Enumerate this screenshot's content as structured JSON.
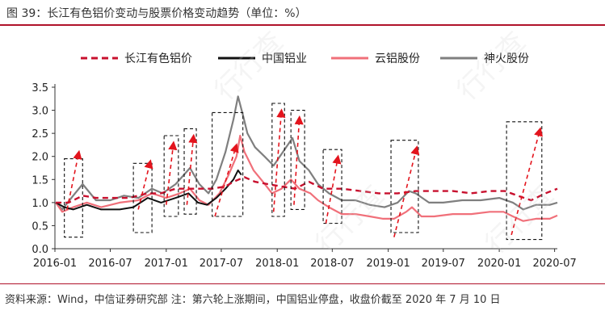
{
  "title": "图 39：长江有色铝价变动与股票价格变动趋势（单位：%）",
  "source": "资料来源：Wind，中信证券研究部  注：第六轮上涨期间，中国铝业停盘，收盘价截至 2020 年 7 月 10 日",
  "watermark": "行行查",
  "colors": {
    "accent": "#b0122a",
    "series": [
      "#c8102e",
      "#111111",
      "#f0707a",
      "#7f7f7f"
    ]
  },
  "chart_data": {
    "type": "line",
    "title": "",
    "xlabel": "",
    "ylabel": "",
    "ylim": [
      0.0,
      3.5
    ],
    "yticks": [
      "0.0",
      "0.5",
      "1.0",
      "1.5",
      "2.0",
      "2.5",
      "3.0",
      "3.5"
    ],
    "xlim": [
      "2016-01-01",
      "2020-07-10"
    ],
    "xticks": [
      "2016-01",
      "2016-07",
      "2017-01",
      "2017-07",
      "2018-01",
      "2018-07",
      "2019-01",
      "2019-07",
      "2020-01",
      "2020-07"
    ],
    "legend": "top",
    "grid": false,
    "series": [
      {
        "name": "长江有色铝价",
        "style": "dashed",
        "points": [
          [
            "2016-01-04",
            1.0
          ],
          [
            "2016-02-15",
            1.0
          ],
          [
            "2016-04-01",
            1.15
          ],
          [
            "2016-05-15",
            1.1
          ],
          [
            "2016-07-01",
            1.1
          ],
          [
            "2016-09-01",
            1.1
          ],
          [
            "2016-11-01",
            1.2
          ],
          [
            "2016-12-15",
            1.2
          ],
          [
            "2017-02-01",
            1.3
          ],
          [
            "2017-04-01",
            1.3
          ],
          [
            "2017-06-01",
            1.3
          ],
          [
            "2017-07-15",
            1.35
          ],
          [
            "2017-08-10",
            1.45
          ],
          [
            "2017-09-15",
            1.55
          ],
          [
            "2017-10-20",
            1.45
          ],
          [
            "2017-12-01",
            1.4
          ],
          [
            "2018-01-15",
            1.35
          ],
          [
            "2018-03-01",
            1.3
          ],
          [
            "2018-04-15",
            1.45
          ],
          [
            "2018-06-01",
            1.3
          ],
          [
            "2018-08-01",
            1.3
          ],
          [
            "2018-10-01",
            1.25
          ],
          [
            "2018-12-01",
            1.2
          ],
          [
            "2019-02-01",
            1.2
          ],
          [
            "2019-04-01",
            1.25
          ],
          [
            "2019-06-01",
            1.25
          ],
          [
            "2019-08-01",
            1.25
          ],
          [
            "2019-10-01",
            1.2
          ],
          [
            "2019-12-01",
            1.25
          ],
          [
            "2020-01-20",
            1.25
          ],
          [
            "2020-03-01",
            1.15
          ],
          [
            "2020-04-15",
            1.05
          ],
          [
            "2020-06-01",
            1.2
          ],
          [
            "2020-07-10",
            1.3
          ]
        ]
      },
      {
        "name": "中国铝业",
        "style": "solid",
        "points": [
          [
            "2016-01-04",
            1.0
          ],
          [
            "2016-02-01",
            0.9
          ],
          [
            "2016-03-01",
            0.85
          ],
          [
            "2016-04-15",
            0.95
          ],
          [
            "2016-06-01",
            0.85
          ],
          [
            "2016-08-01",
            0.85
          ],
          [
            "2016-09-15",
            0.9
          ],
          [
            "2016-11-01",
            1.1
          ],
          [
            "2016-12-15",
            1.0
          ],
          [
            "2017-02-01",
            1.1
          ],
          [
            "2017-03-15",
            1.2
          ],
          [
            "2017-04-15",
            1.0
          ],
          [
            "2017-05-15",
            0.95
          ],
          [
            "2017-06-15",
            1.1
          ],
          [
            "2017-07-15",
            1.3
          ],
          [
            "2017-08-10",
            1.5
          ],
          [
            "2017-08-25",
            1.7
          ],
          [
            "2017-09-05",
            1.6
          ]
        ]
      },
      {
        "name": "云铝股份",
        "style": "solid",
        "points": [
          [
            "2016-01-04",
            1.0
          ],
          [
            "2016-01-25",
            0.8
          ],
          [
            "2016-03-01",
            0.9
          ],
          [
            "2016-04-15",
            1.0
          ],
          [
            "2016-06-01",
            0.9
          ],
          [
            "2016-08-01",
            1.0
          ],
          [
            "2016-10-01",
            1.05
          ],
          [
            "2016-11-15",
            1.2
          ],
          [
            "2017-01-01",
            1.1
          ],
          [
            "2017-02-15",
            1.2
          ],
          [
            "2017-03-20",
            1.3
          ],
          [
            "2017-04-20",
            1.05
          ],
          [
            "2017-05-20",
            0.95
          ],
          [
            "2017-06-25",
            1.2
          ],
          [
            "2017-07-25",
            1.6
          ],
          [
            "2017-08-20",
            2.0
          ],
          [
            "2017-09-01",
            2.45
          ],
          [
            "2017-09-15",
            2.1
          ],
          [
            "2017-10-15",
            1.7
          ],
          [
            "2017-11-15",
            1.45
          ],
          [
            "2017-12-15",
            1.2
          ],
          [
            "2018-01-15",
            1.3
          ],
          [
            "2018-02-15",
            1.5
          ],
          [
            "2018-03-15",
            1.3
          ],
          [
            "2018-04-20",
            1.2
          ],
          [
            "2018-05-15",
            1.05
          ],
          [
            "2018-06-20",
            0.9
          ],
          [
            "2018-08-01",
            0.75
          ],
          [
            "2018-09-15",
            0.75
          ],
          [
            "2018-11-01",
            0.7
          ],
          [
            "2018-12-15",
            0.65
          ],
          [
            "2019-01-20",
            0.65
          ],
          [
            "2019-03-01",
            0.8
          ],
          [
            "2019-03-20",
            0.9
          ],
          [
            "2019-04-20",
            0.7
          ],
          [
            "2019-06-01",
            0.7
          ],
          [
            "2019-08-01",
            0.75
          ],
          [
            "2019-10-01",
            0.75
          ],
          [
            "2019-12-01",
            0.8
          ],
          [
            "2020-01-15",
            0.8
          ],
          [
            "2020-02-15",
            0.7
          ],
          [
            "2020-03-20",
            0.6
          ],
          [
            "2020-05-01",
            0.65
          ],
          [
            "2020-06-15",
            0.65
          ],
          [
            "2020-07-10",
            0.72
          ]
        ]
      },
      {
        "name": "神火股份",
        "style": "solid",
        "points": [
          [
            "2016-01-04",
            1.0
          ],
          [
            "2016-01-25",
            0.85
          ],
          [
            "2016-03-01",
            1.15
          ],
          [
            "2016-04-01",
            1.4
          ],
          [
            "2016-05-15",
            1.05
          ],
          [
            "2016-07-01",
            1.05
          ],
          [
            "2016-08-15",
            1.15
          ],
          [
            "2016-10-01",
            1.1
          ],
          [
            "2016-11-15",
            1.3
          ],
          [
            "2016-12-20",
            1.2
          ],
          [
            "2017-02-01",
            1.4
          ],
          [
            "2017-03-20",
            1.75
          ],
          [
            "2017-04-20",
            1.4
          ],
          [
            "2017-05-20",
            1.2
          ],
          [
            "2017-06-15",
            1.5
          ],
          [
            "2017-07-15",
            2.1
          ],
          [
            "2017-08-10",
            2.8
          ],
          [
            "2017-08-25",
            3.3
          ],
          [
            "2017-09-10",
            2.9
          ],
          [
            "2017-09-25",
            2.5
          ],
          [
            "2017-10-20",
            2.2
          ],
          [
            "2017-11-20",
            2.0
          ],
          [
            "2017-12-20",
            1.8
          ],
          [
            "2018-01-20",
            2.1
          ],
          [
            "2018-02-20",
            2.4
          ],
          [
            "2018-03-15",
            1.9
          ],
          [
            "2018-04-15",
            1.7
          ],
          [
            "2018-05-15",
            1.4
          ],
          [
            "2018-06-20",
            1.2
          ],
          [
            "2018-08-01",
            1.05
          ],
          [
            "2018-09-15",
            1.05
          ],
          [
            "2018-11-01",
            0.95
          ],
          [
            "2018-12-20",
            0.9
          ],
          [
            "2019-02-01",
            1.0
          ],
          [
            "2019-03-10",
            1.25
          ],
          [
            "2019-04-01",
            1.2
          ],
          [
            "2019-05-15",
            1.0
          ],
          [
            "2019-07-01",
            1.0
          ],
          [
            "2019-09-01",
            1.05
          ],
          [
            "2019-11-01",
            1.05
          ],
          [
            "2020-01-01",
            1.1
          ],
          [
            "2020-02-15",
            1.0
          ],
          [
            "2020-03-20",
            0.85
          ],
          [
            "2020-05-01",
            0.95
          ],
          [
            "2020-06-15",
            0.95
          ],
          [
            "2020-07-10",
            1.0
          ]
        ]
      }
    ],
    "annotations": {
      "style": "dashed-box-with-dashed-arrow",
      "boxes": [
        {
          "x0": "2016-02-01",
          "x1": "2016-04-01",
          "y0": 0.25,
          "y1": 1.95
        },
        {
          "x0": "2016-09-15",
          "x1": "2016-11-15",
          "y0": 0.35,
          "y1": 1.85
        },
        {
          "x0": "2016-12-25",
          "x1": "2017-02-10",
          "y0": 0.7,
          "y1": 2.45
        },
        {
          "x0": "2017-03-01",
          "x1": "2017-04-10",
          "y0": 0.75,
          "y1": 2.6
        },
        {
          "x0": "2017-06-01",
          "x1": "2017-09-10",
          "y0": 0.7,
          "y1": 2.95
        },
        {
          "x0": "2017-12-15",
          "x1": "2018-01-25",
          "y0": 0.7,
          "y1": 3.15
        },
        {
          "x0": "2018-02-15",
          "x1": "2018-04-01",
          "y0": 0.85,
          "y1": 3.0
        },
        {
          "x0": "2018-06-01",
          "x1": "2018-08-01",
          "y0": 0.55,
          "y1": 2.15
        },
        {
          "x0": "2019-01-10",
          "x1": "2019-04-10",
          "y0": 0.35,
          "y1": 2.35
        },
        {
          "x0": "2020-01-25",
          "x1": "2020-05-20",
          "y0": 0.2,
          "y1": 2.75
        }
      ],
      "arrows": [
        {
          "from": [
            "2016-02-10",
            0.85
          ],
          "to": [
            "2016-03-20",
            2.1
          ]
        },
        {
          "from": [
            "2016-10-01",
            0.85
          ],
          "to": [
            "2016-11-10",
            1.9
          ]
        },
        {
          "from": [
            "2017-01-01",
            0.95
          ],
          "to": [
            "2017-01-25",
            2.3
          ]
        },
        {
          "from": [
            "2017-03-10",
            0.95
          ],
          "to": [
            "2017-04-01",
            2.45
          ]
        },
        {
          "from": [
            "2017-06-10",
            0.7
          ],
          "to": [
            "2017-08-20",
            2.25
          ]
        },
        {
          "from": [
            "2017-12-20",
            0.8
          ],
          "to": [
            "2018-01-15",
            3.0
          ]
        },
        {
          "from": [
            "2018-02-25",
            0.95
          ],
          "to": [
            "2018-03-15",
            2.85
          ]
        },
        {
          "from": [
            "2018-06-10",
            0.55
          ],
          "to": [
            "2018-07-20",
            2.0
          ]
        },
        {
          "from": [
            "2019-01-20",
            0.25
          ],
          "to": [
            "2019-04-05",
            2.2
          ]
        },
        {
          "from": [
            "2020-02-10",
            0.3
          ],
          "to": [
            "2020-05-15",
            2.6
          ]
        }
      ]
    }
  }
}
